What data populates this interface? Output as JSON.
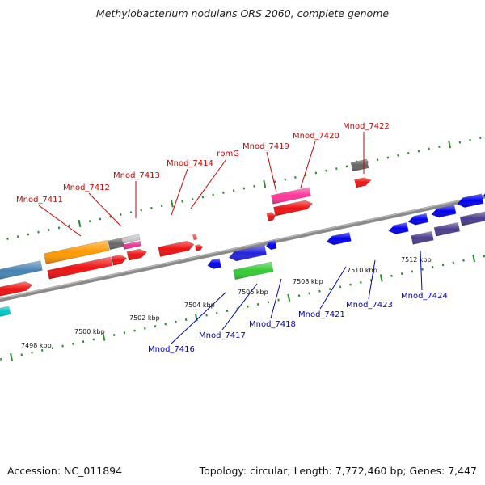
{
  "title": "Methylobacterium nodulans ORS 2060, complete genome",
  "footer": {
    "accession": "Accession: NC_011894",
    "summary": "Topology: circular; Length: 7,772,460 bp; Genes: 7,447"
  },
  "colors": {
    "backbone": "#8a8a8a",
    "top_label": "#cc0000",
    "bottom_label": "#0000bb",
    "tick": "#2a8a2a"
  },
  "kbp_labels": [
    "7498 kbp",
    "7500 kbp",
    "7502 kbp",
    "7504 kbp",
    "7506 kbp",
    "7508 kbp",
    "7510 kbp",
    "7512 kbp"
  ],
  "top_genes": [
    "Mnod_7411",
    "Mnod_7412",
    "Mnod_7413",
    "Mnod_7414",
    "rpmG",
    "Mnod_7419",
    "Mnod_7420",
    "Mnod_7422"
  ],
  "bottom_genes": [
    "Mnod_7416",
    "Mnod_7417",
    "Mnod_7418",
    "Mnod_7421",
    "Mnod_7423",
    "Mnod_7424"
  ]
}
